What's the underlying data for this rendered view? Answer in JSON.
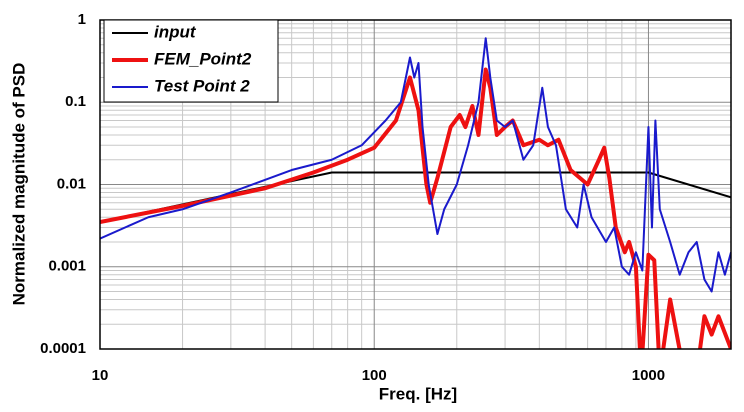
{
  "chart_data": {
    "type": "line",
    "x_label": "Freq. [Hz]",
    "y_label": "Normalized magnitude of PSD",
    "xscale": "log",
    "yscale": "log",
    "grid": true,
    "legend": "upper left",
    "xlim": [
      10,
      2000
    ],
    "ylim": [
      0.0001,
      1
    ],
    "xticks": [
      10,
      100,
      1000
    ],
    "yticks": [
      0.0001,
      0.001,
      0.01,
      0.1,
      1
    ],
    "series": [
      {
        "name": "input",
        "color": "#000000",
        "width": 2,
        "x": [
          10,
          70,
          1000,
          2000
        ],
        "values": [
          0.0035,
          0.014,
          0.014,
          0.007
        ]
      },
      {
        "name": "FEM_Point2",
        "color": "#ee1111",
        "width": 4,
        "x": [
          10,
          20,
          40,
          60,
          80,
          100,
          120,
          135,
          145,
          155,
          160,
          170,
          190,
          205,
          215,
          228,
          240,
          255,
          265,
          280,
          300,
          320,
          350,
          400,
          430,
          470,
          520,
          600,
          660,
          690,
          720,
          760,
          820,
          850,
          900,
          940,
          1000,
          1050,
          1100,
          1200,
          1350,
          1500,
          1600,
          1700,
          1800,
          2000
        ],
        "values": [
          0.0035,
          0.0055,
          0.009,
          0.014,
          0.02,
          0.028,
          0.06,
          0.2,
          0.08,
          0.01,
          0.006,
          0.012,
          0.05,
          0.07,
          0.05,
          0.09,
          0.04,
          0.25,
          0.15,
          0.04,
          0.05,
          0.06,
          0.03,
          0.035,
          0.03,
          0.035,
          0.015,
          0.01,
          0.02,
          0.028,
          0.012,
          0.003,
          0.0015,
          0.002,
          0.001,
          5e-05,
          0.0014,
          0.0012,
          5e-05,
          0.0004,
          5e-05,
          5e-05,
          0.00025,
          0.00015,
          0.00025,
          0.0001
        ]
      },
      {
        "name": "Test Point 2",
        "color": "#1a1acc",
        "width": 2,
        "x": [
          10,
          15,
          20,
          30,
          50,
          70,
          90,
          110,
          125,
          135,
          140,
          145,
          150,
          158,
          170,
          180,
          200,
          220,
          240,
          255,
          265,
          280,
          300,
          320,
          350,
          380,
          410,
          430,
          460,
          500,
          550,
          580,
          620,
          700,
          750,
          800,
          850,
          900,
          950,
          1000,
          1030,
          1060,
          1100,
          1200,
          1300,
          1400,
          1500,
          1600,
          1700,
          1800,
          1900,
          2000
        ],
        "values": [
          0.0022,
          0.004,
          0.005,
          0.008,
          0.015,
          0.02,
          0.03,
          0.06,
          0.1,
          0.35,
          0.2,
          0.3,
          0.05,
          0.01,
          0.0025,
          0.005,
          0.01,
          0.03,
          0.1,
          0.6,
          0.2,
          0.06,
          0.05,
          0.06,
          0.02,
          0.03,
          0.15,
          0.05,
          0.03,
          0.005,
          0.003,
          0.01,
          0.004,
          0.002,
          0.003,
          0.001,
          0.0008,
          0.0015,
          0.0009,
          0.05,
          0.003,
          0.06,
          0.005,
          0.002,
          0.0008,
          0.0015,
          0.002,
          0.0007,
          0.0005,
          0.0015,
          0.0008,
          0.0015
        ]
      }
    ]
  }
}
